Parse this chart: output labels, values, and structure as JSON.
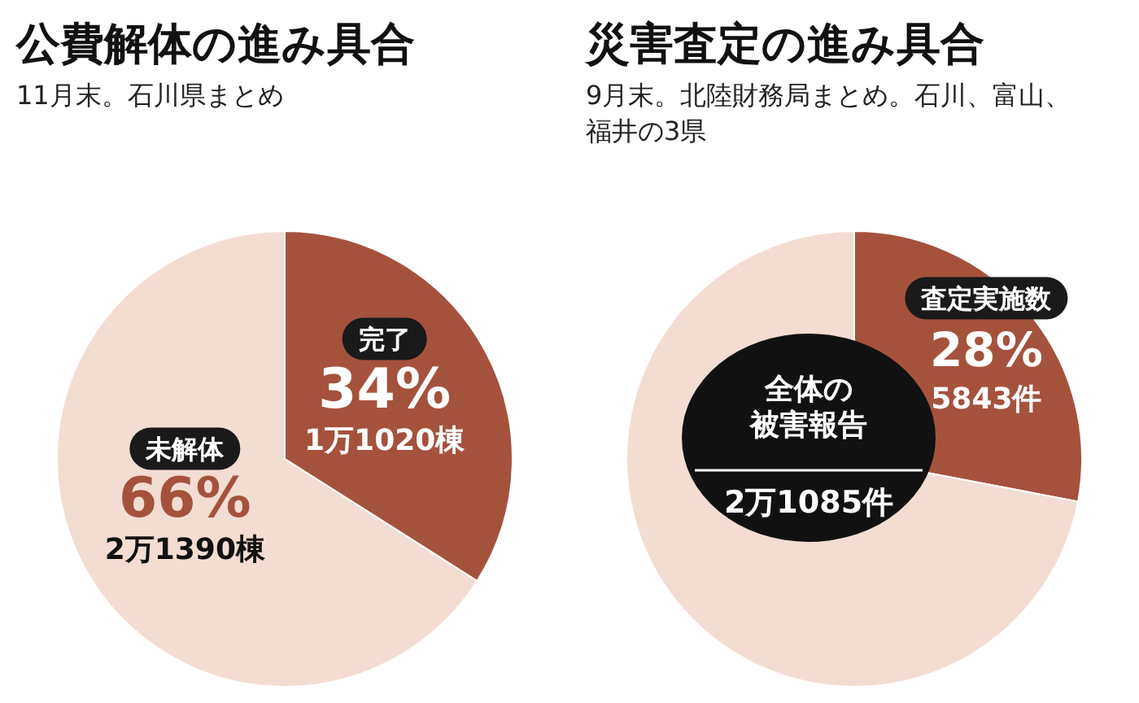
{
  "chart_data": [
    {
      "type": "pie",
      "title": "公費解体の進み具合",
      "subtitle": "11月末。石川県まとめ",
      "categories": [
        "完了",
        "未解体"
      ],
      "values": [
        34,
        66
      ],
      "colors": [
        "#a5523d",
        "#f3ddd2"
      ],
      "value_labels": [
        "34%",
        "66%"
      ],
      "annotations": [
        "1万1020棟",
        "2万1390棟"
      ]
    },
    {
      "type": "pie",
      "title": "災害査定の進み具合",
      "subtitle": "9月末。北陸財務局まとめ。石川、富山、福井の3県",
      "categories": [
        "査定実施数",
        null
      ],
      "values": [
        28,
        72
      ],
      "colors": [
        "#a5523d",
        "#f3ddd2"
      ],
      "value_labels": [
        "28%",
        null
      ],
      "annotations": [
        "5843件",
        "全体の被害報告",
        "2万1085件"
      ]
    }
  ]
}
